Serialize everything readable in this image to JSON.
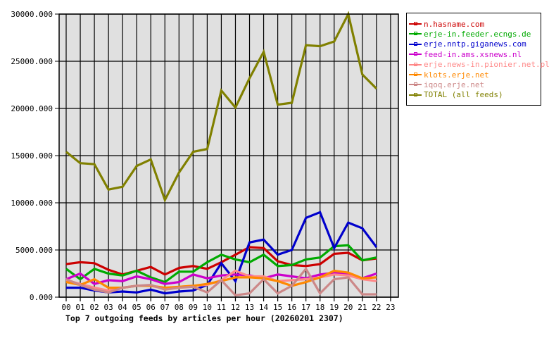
{
  "chart_data": {
    "type": "line",
    "title": "Top 7 outgoing feeds by articles per hour (20260201 2307)",
    "xlabel": "",
    "ylabel": "",
    "ylim": [
      0,
      30000
    ],
    "yticks": [
      "0.000",
      "5000.000",
      "10000.000",
      "15000.000",
      "20000.000",
      "25000.000",
      "30000.000"
    ],
    "grid": true,
    "legend_position": "right-top",
    "x": [
      "00",
      "01",
      "02",
      "03",
      "04",
      "05",
      "06",
      "07",
      "08",
      "09",
      "10",
      "11",
      "12",
      "13",
      "14",
      "15",
      "16",
      "17",
      "18",
      "19",
      "20",
      "21",
      "22",
      "23"
    ],
    "series": [
      {
        "name": "n.hasname.com",
        "color": "#cc0000",
        "values": [
          3500,
          3700,
          3600,
          2900,
          2400,
          2800,
          3200,
          2400,
          3100,
          3300,
          3000,
          3700,
          4500,
          5300,
          5200,
          3800,
          3400,
          3300,
          3500,
          4600,
          4700,
          3900,
          4100
        ]
      },
      {
        "name": "erje-in.feeder.ecngs.de",
        "color": "#00aa00",
        "values": [
          3000,
          1900,
          3000,
          2500,
          2300,
          2800,
          2100,
          1600,
          2700,
          2700,
          3700,
          4500,
          4000,
          3700,
          4500,
          3300,
          3400,
          4000,
          4200,
          5400,
          5500,
          3900,
          4200
        ]
      },
      {
        "name": "erje.nntp.giganews.com",
        "color": "#0000cc",
        "values": [
          1000,
          1000,
          700,
          500,
          600,
          500,
          800,
          400,
          600,
          700,
          1300,
          3600,
          1700,
          5800,
          6100,
          4500,
          5000,
          8400,
          9000,
          5200,
          7900,
          7300,
          5300
        ]
      },
      {
        "name": "feed-in.ams.xsnews.nl",
        "color": "#cc00cc",
        "values": [
          1900,
          2500,
          1400,
          1800,
          1700,
          2200,
          1900,
          1400,
          1600,
          2400,
          2000,
          2300,
          2400,
          2300,
          2000,
          2400,
          2200,
          2000,
          2400,
          2600,
          2400,
          2000,
          2500
        ]
      },
      {
        "name": "erje.news-in.pionier.net.pl",
        "color": "#ff8888",
        "values": [
          1800,
          1400,
          1000,
          700,
          1000,
          1200,
          1200,
          900,
          1100,
          1200,
          1300,
          1800,
          2800,
          2200,
          2200,
          1700,
          1800,
          1900,
          2100,
          2400,
          2300,
          1900,
          1700
        ]
      },
      {
        "name": "klots.erje.net",
        "color": "#ff8800",
        "values": [
          1600,
          1300,
          1900,
          1000,
          1000,
          1200,
          1200,
          1000,
          1100,
          1200,
          1400,
          1700,
          2100,
          2100,
          2000,
          1700,
          1200,
          1600,
          2100,
          2800,
          2600,
          2000,
          2100
        ]
      },
      {
        "name": "iqoq.erje.net",
        "color": "#cc8888",
        "values": [
          1900,
          1300,
          800,
          500,
          1000,
          1200,
          1300,
          800,
          1000,
          1100,
          500,
          1800,
          200,
          400,
          1900,
          400,
          1200,
          3000,
          400,
          1900,
          2100,
          300,
          300
        ]
      },
      {
        "name": "TOTAL (all feeds)",
        "color": "#808000",
        "values": [
          15400,
          14200,
          14100,
          11400,
          11700,
          13900,
          14600,
          10300,
          13200,
          15400,
          15700,
          21900,
          20100,
          23200,
          26000,
          20400,
          20600,
          26700,
          26600,
          27100,
          30000,
          23600,
          22100
        ]
      }
    ]
  },
  "colors": {
    "plot_background": "#e0e0e0",
    "grid": "#000000",
    "page_background": "#ffffff"
  }
}
